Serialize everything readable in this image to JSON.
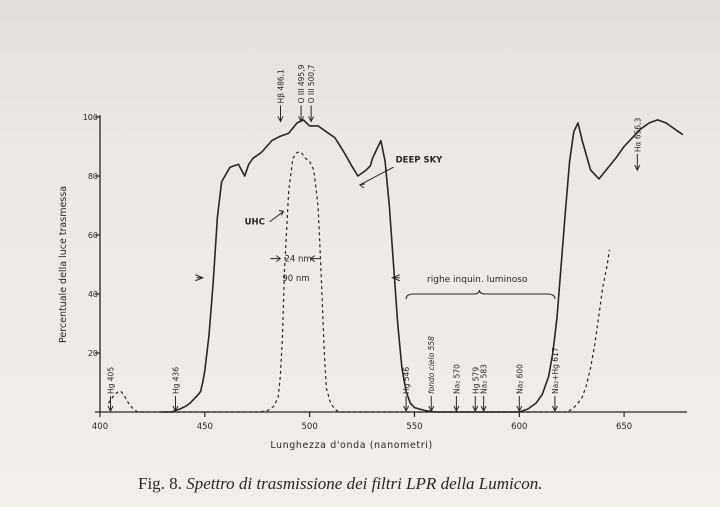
{
  "chart_data": {
    "type": "line",
    "title": "",
    "xlabel": "Lunghezza d'onda  (nanometri)",
    "ylabel": "Percentuale della luce trasmessa",
    "xlim": [
      400,
      680
    ],
    "ylim": [
      0,
      100
    ],
    "x_ticks": [
      400,
      450,
      500,
      550,
      600,
      650
    ],
    "y_ticks": [
      0,
      20,
      40,
      60,
      80,
      100
    ],
    "x_tick_labels": [
      "400",
      "450",
      "500",
      "550",
      "600",
      "650"
    ],
    "y_tick_labels": [
      "20",
      "40",
      "60",
      "80",
      "100"
    ],
    "grid": false,
    "series": [
      {
        "name": "DEEP SKY",
        "style": "solid",
        "x": [
          429,
          434,
          438,
          441,
          443,
          445,
          447,
          448,
          449,
          450,
          451,
          452,
          454,
          456,
          458,
          462,
          466,
          469,
          471,
          473,
          477,
          482,
          486,
          490,
          494,
          497,
          500,
          504,
          508,
          512,
          516,
          520,
          523,
          525,
          527,
          529,
          530,
          532,
          534,
          536,
          538,
          540,
          542,
          544,
          546,
          548,
          550,
          555,
          560,
          570,
          580,
          590,
          595,
          600,
          604,
          608,
          611,
          614,
          616,
          618,
          620,
          622,
          624,
          626,
          628,
          630,
          634,
          638,
          642,
          646,
          650,
          654,
          658,
          662,
          666,
          670,
          674,
          678
        ],
        "y": [
          0,
          0,
          1,
          2,
          3,
          4.5,
          6,
          7,
          10,
          14,
          20,
          26,
          44,
          66,
          78,
          83,
          84,
          80,
          84,
          86,
          88,
          92,
          93.5,
          94.5,
          98,
          99,
          97,
          97,
          95,
          93,
          88.5,
          83.5,
          80,
          81,
          82,
          83.5,
          86,
          89,
          92,
          85,
          70,
          50,
          30,
          15,
          7,
          3,
          1.5,
          0.5,
          0,
          0,
          0,
          0,
          0,
          0,
          1,
          3,
          6,
          12,
          20,
          32,
          50,
          68,
          85,
          95,
          98,
          92,
          82,
          79,
          82.5,
          86,
          90,
          93,
          96,
          98,
          99,
          98,
          96,
          94
        ]
      },
      {
        "name": "UHC",
        "style": "dashed",
        "x": [
          404,
          407,
          409,
          410,
          412,
          414,
          416,
          418,
          420,
          424,
          434,
          442,
          452,
          466,
          476,
          480,
          483,
          485,
          486,
          487,
          488,
          490,
          492,
          494,
          496,
          498,
          500,
          502,
          504,
          505,
          506,
          507,
          508,
          510,
          512,
          514,
          518,
          524,
          534,
          544,
          548,
          550,
          560,
          580,
          600,
          616,
          622,
          624,
          626,
          628,
          630,
          632,
          634,
          636,
          638,
          640,
          642,
          643
        ],
        "y": [
          3,
          6,
          7,
          7,
          5,
          2.5,
          1,
          0,
          0,
          0,
          0,
          0,
          0,
          0,
          0,
          0.5,
          2,
          5,
          12,
          25,
          48,
          75,
          86,
          88,
          88,
          86,
          85,
          82,
          70,
          55,
          38,
          20,
          8,
          3,
          1,
          0,
          0,
          0,
          0,
          0,
          0,
          0,
          0,
          0,
          0,
          0,
          0,
          0.5,
          1.5,
          3,
          5,
          9,
          15,
          23,
          33,
          43,
          50,
          55
        ]
      }
    ],
    "annotations": {
      "top_lines": [
        {
          "label": "Hβ 486,1",
          "x": 486.1
        },
        {
          "label": "O III 495,9",
          "x": 495.9
        },
        {
          "label": "O III 500,7",
          "x": 500.7
        },
        {
          "label": "Hα 656,3",
          "x": 656.3
        }
      ],
      "bottom_lines": [
        {
          "label": "Hg 405",
          "x": 405
        },
        {
          "label": "Hg 436",
          "x": 436
        },
        {
          "label": "Hg 546",
          "x": 546
        },
        {
          "label": "fondo cielo 558",
          "x": 558
        },
        {
          "label": "Na₂ 570",
          "x": 570
        },
        {
          "label": "Hg 579",
          "x": 579
        },
        {
          "label": "Na₂ 583",
          "x": 583
        },
        {
          "label": "Na₂ 600",
          "x": 600
        },
        {
          "label": "Na₂+Hg 617",
          "x": 617
        }
      ],
      "deep_sky_label": "DEEP SKY",
      "uhc_label": "UHC",
      "bandwidth_24": "24 nm",
      "bandwidth_90": "90 nm",
      "pollution_label": "righe inquin. luminoso"
    }
  },
  "caption": {
    "number": "Fig. 8.",
    "text": "Spettro di trasmissione dei filtri LPR della Lumicon."
  }
}
